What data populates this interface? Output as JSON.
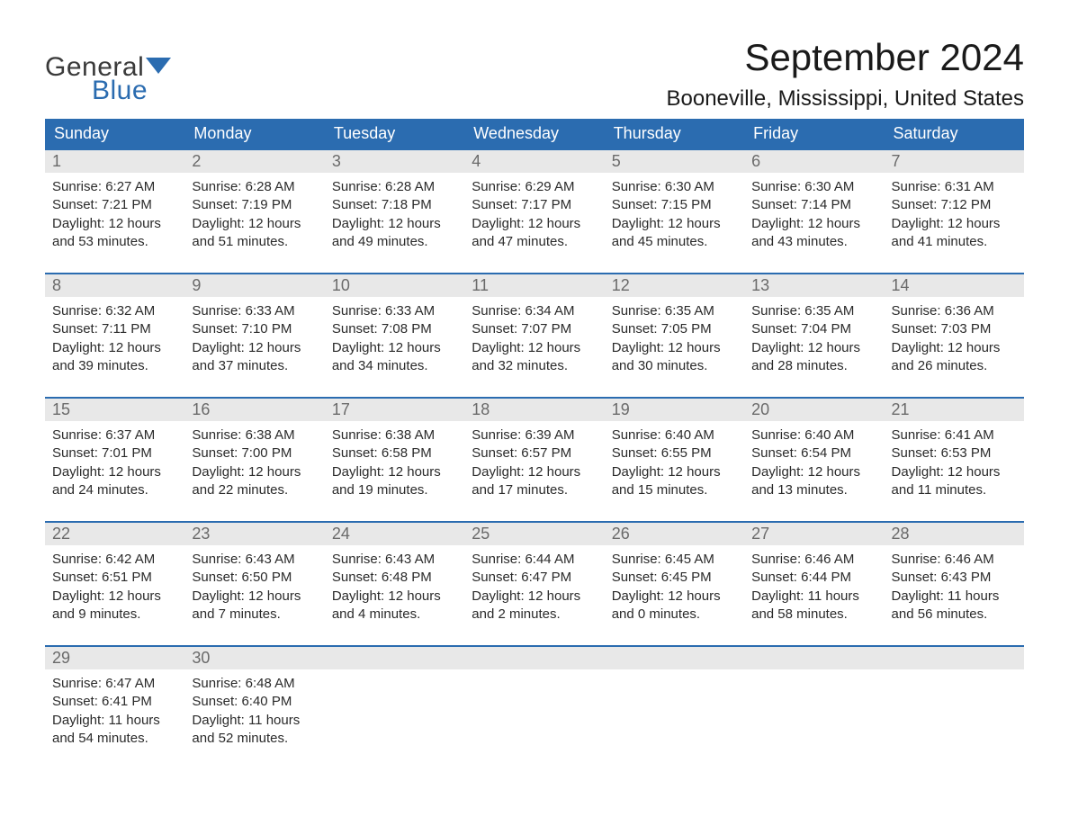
{
  "logo": {
    "word1": "General",
    "word2": "Blue"
  },
  "header": {
    "title": "September 2024",
    "location": "Booneville, Mississippi, United States"
  },
  "colors": {
    "header_bg": "#2b6cb0",
    "header_text": "#ffffff",
    "daynum_bg": "#e8e8e8",
    "daynum_text": "#6a6a6a",
    "body_text": "#2a2a2a",
    "logo_gray": "#3a3a3a",
    "logo_blue": "#2b6cb0",
    "page_bg": "#ffffff",
    "row_border": "#2b6cb0"
  },
  "typography": {
    "title_fontsize": 42,
    "location_fontsize": 24,
    "dayheader_fontsize": 18,
    "daynum_fontsize": 18,
    "content_fontsize": 15
  },
  "day_names": [
    "Sunday",
    "Monday",
    "Tuesday",
    "Wednesday",
    "Thursday",
    "Friday",
    "Saturday"
  ],
  "weeks": [
    [
      {
        "num": "1",
        "sunrise": "6:27 AM",
        "sunset": "7:21 PM",
        "dl_h": "12",
        "dl_m": "53"
      },
      {
        "num": "2",
        "sunrise": "6:28 AM",
        "sunset": "7:19 PM",
        "dl_h": "12",
        "dl_m": "51"
      },
      {
        "num": "3",
        "sunrise": "6:28 AM",
        "sunset": "7:18 PM",
        "dl_h": "12",
        "dl_m": "49"
      },
      {
        "num": "4",
        "sunrise": "6:29 AM",
        "sunset": "7:17 PM",
        "dl_h": "12",
        "dl_m": "47"
      },
      {
        "num": "5",
        "sunrise": "6:30 AM",
        "sunset": "7:15 PM",
        "dl_h": "12",
        "dl_m": "45"
      },
      {
        "num": "6",
        "sunrise": "6:30 AM",
        "sunset": "7:14 PM",
        "dl_h": "12",
        "dl_m": "43"
      },
      {
        "num": "7",
        "sunrise": "6:31 AM",
        "sunset": "7:12 PM",
        "dl_h": "12",
        "dl_m": "41"
      }
    ],
    [
      {
        "num": "8",
        "sunrise": "6:32 AM",
        "sunset": "7:11 PM",
        "dl_h": "12",
        "dl_m": "39"
      },
      {
        "num": "9",
        "sunrise": "6:33 AM",
        "sunset": "7:10 PM",
        "dl_h": "12",
        "dl_m": "37"
      },
      {
        "num": "10",
        "sunrise": "6:33 AM",
        "sunset": "7:08 PM",
        "dl_h": "12",
        "dl_m": "34"
      },
      {
        "num": "11",
        "sunrise": "6:34 AM",
        "sunset": "7:07 PM",
        "dl_h": "12",
        "dl_m": "32"
      },
      {
        "num": "12",
        "sunrise": "6:35 AM",
        "sunset": "7:05 PM",
        "dl_h": "12",
        "dl_m": "30"
      },
      {
        "num": "13",
        "sunrise": "6:35 AM",
        "sunset": "7:04 PM",
        "dl_h": "12",
        "dl_m": "28"
      },
      {
        "num": "14",
        "sunrise": "6:36 AM",
        "sunset": "7:03 PM",
        "dl_h": "12",
        "dl_m": "26"
      }
    ],
    [
      {
        "num": "15",
        "sunrise": "6:37 AM",
        "sunset": "7:01 PM",
        "dl_h": "12",
        "dl_m": "24"
      },
      {
        "num": "16",
        "sunrise": "6:38 AM",
        "sunset": "7:00 PM",
        "dl_h": "12",
        "dl_m": "22"
      },
      {
        "num": "17",
        "sunrise": "6:38 AM",
        "sunset": "6:58 PM",
        "dl_h": "12",
        "dl_m": "19"
      },
      {
        "num": "18",
        "sunrise": "6:39 AM",
        "sunset": "6:57 PM",
        "dl_h": "12",
        "dl_m": "17"
      },
      {
        "num": "19",
        "sunrise": "6:40 AM",
        "sunset": "6:55 PM",
        "dl_h": "12",
        "dl_m": "15"
      },
      {
        "num": "20",
        "sunrise": "6:40 AM",
        "sunset": "6:54 PM",
        "dl_h": "12",
        "dl_m": "13"
      },
      {
        "num": "21",
        "sunrise": "6:41 AM",
        "sunset": "6:53 PM",
        "dl_h": "12",
        "dl_m": "11"
      }
    ],
    [
      {
        "num": "22",
        "sunrise": "6:42 AM",
        "sunset": "6:51 PM",
        "dl_h": "12",
        "dl_m": "9"
      },
      {
        "num": "23",
        "sunrise": "6:43 AM",
        "sunset": "6:50 PM",
        "dl_h": "12",
        "dl_m": "7"
      },
      {
        "num": "24",
        "sunrise": "6:43 AM",
        "sunset": "6:48 PM",
        "dl_h": "12",
        "dl_m": "4"
      },
      {
        "num": "25",
        "sunrise": "6:44 AM",
        "sunset": "6:47 PM",
        "dl_h": "12",
        "dl_m": "2"
      },
      {
        "num": "26",
        "sunrise": "6:45 AM",
        "sunset": "6:45 PM",
        "dl_h": "12",
        "dl_m": "0"
      },
      {
        "num": "27",
        "sunrise": "6:46 AM",
        "sunset": "6:44 PM",
        "dl_h": "11",
        "dl_m": "58"
      },
      {
        "num": "28",
        "sunrise": "6:46 AM",
        "sunset": "6:43 PM",
        "dl_h": "11",
        "dl_m": "56"
      }
    ],
    [
      {
        "num": "29",
        "sunrise": "6:47 AM",
        "sunset": "6:41 PM",
        "dl_h": "11",
        "dl_m": "54"
      },
      {
        "num": "30",
        "sunrise": "6:48 AM",
        "sunset": "6:40 PM",
        "dl_h": "11",
        "dl_m": "52"
      },
      null,
      null,
      null,
      null,
      null
    ]
  ]
}
